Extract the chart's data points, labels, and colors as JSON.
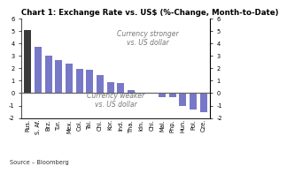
{
  "title": "Chart 1: Exchange Rate vs. US$ (%-Change, Month-to-Date)",
  "categories": [
    "Rus.",
    "S. Af.",
    "Brz.",
    "Tur.",
    "Mex.",
    "Col.",
    "Tai.",
    "Chi.",
    "Kor.",
    "Ind.",
    "Tha.",
    "Idn.",
    "Chi.",
    "Mal.",
    "Php.",
    "Hun.",
    "Pol.",
    "Cze."
  ],
  "values": [
    5.1,
    3.7,
    3.05,
    2.65,
    2.4,
    1.95,
    1.85,
    1.45,
    0.9,
    0.8,
    0.25,
    0.05,
    -0.05,
    -0.3,
    -0.35,
    -1.05,
    -1.35,
    -1.5
  ],
  "bar_color_first": "#3a3a3a",
  "bar_color_blue": "#7878c8",
  "ylim": [
    -2,
    6
  ],
  "yticks": [
    -2,
    -1,
    0,
    1,
    2,
    3,
    4,
    5,
    6
  ],
  "annotation_stronger": "Currency stronger\nvs. US dollar",
  "annotation_weaker": "Currency weaker\nvs. US dollar",
  "source": "Source – Bloomberg",
  "title_fontsize": 6.2,
  "label_fontsize": 4.8,
  "annotation_fontsize": 5.5
}
